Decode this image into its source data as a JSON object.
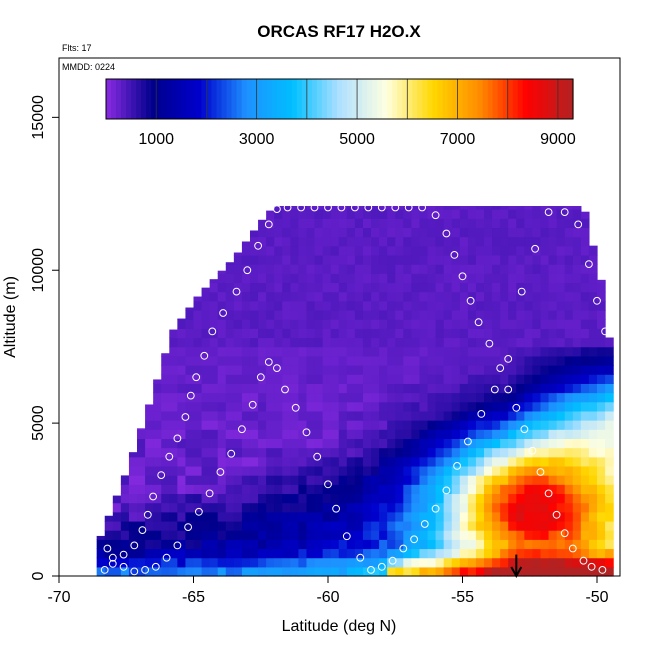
{
  "chart_data": {
    "type": "heatmap",
    "title": "ORCAS RF17 H2O.X",
    "flights_note": "Flts: 17",
    "date_note": "MMDD: 0224",
    "xlabel": "Latitude (deg N)",
    "ylabel": "Altitude (m)",
    "xlim": [
      -70,
      -49
    ],
    "ylim": [
      0,
      17000
    ],
    "x_ticks": [
      -70,
      -65,
      -60,
      -55,
      -50
    ],
    "x_tick_labels": [
      "-70",
      "-65",
      "-60",
      "-55",
      "-50"
    ],
    "y_ticks": [
      0,
      5000,
      10000,
      15000
    ],
    "y_tick_labels": [
      "0",
      "5000",
      "10000",
      "15000"
    ],
    "colorbar": {
      "range": [
        0,
        9300
      ],
      "ticks": [
        1000,
        3000,
        5000,
        7000,
        9000
      ],
      "tick_labels": [
        "1000",
        "3000",
        "5000",
        "7000",
        "9000"
      ],
      "colors": [
        "#8a2be2",
        "#00008b",
        "#0000cd",
        "#1e90ff",
        "#00bfff",
        "#b0e0ff",
        "#ffffe0",
        "#ffd700",
        "#ff8c00",
        "#ff0000",
        "#b22222"
      ]
    },
    "field": {
      "lat_min": -68.6,
      "lat_max": -49.6,
      "top_envelope": [
        [
          -68.5,
          1200
        ],
        [
          -67.5,
          3400
        ],
        [
          -66.5,
          6000
        ],
        [
          -65.8,
          8000
        ],
        [
          -64.8,
          9200
        ],
        [
          -63.5,
          10400
        ],
        [
          -62.5,
          11600
        ],
        [
          -62.0,
          12100
        ],
        [
          -56.0,
          12100
        ],
        [
          -50.5,
          12100
        ],
        [
          -49.8,
          9500
        ],
        [
          -49.6,
          7800
        ]
      ],
      "surface_hot_lat": -57.9,
      "hot_plume_core": [
        -52.5,
        2400
      ],
      "cold_upper_value": 250
    },
    "observations": {
      "ascent_west": [
        [
          -68.3,
          200
        ],
        [
          -68.0,
          400
        ],
        [
          -67.6,
          700
        ],
        [
          -67.2,
          1000
        ],
        [
          -66.9,
          1500
        ],
        [
          -66.7,
          2000
        ],
        [
          -66.5,
          2600
        ],
        [
          -66.2,
          3300
        ],
        [
          -65.9,
          3900
        ],
        [
          -65.6,
          4500
        ],
        [
          -65.3,
          5200
        ],
        [
          -65.1,
          5900
        ],
        [
          -64.9,
          6500
        ],
        [
          -64.6,
          7200
        ],
        [
          -64.3,
          8000
        ],
        [
          -63.9,
          8600
        ],
        [
          -63.4,
          9300
        ],
        [
          -63.0,
          10000
        ],
        [
          -62.6,
          10800
        ],
        [
          -62.2,
          11500
        ],
        [
          -61.9,
          12000
        ]
      ],
      "level_top": [
        [
          -61.5,
          12050
        ],
        [
          -61.0,
          12050
        ],
        [
          -60.5,
          12050
        ],
        [
          -60.0,
          12050
        ],
        [
          -59.5,
          12050
        ],
        [
          -59.0,
          12050
        ],
        [
          -58.5,
          12050
        ],
        [
          -58.0,
          12050
        ],
        [
          -57.5,
          12050
        ],
        [
          -57.0,
          12050
        ],
        [
          -56.5,
          12050
        ]
      ],
      "descent_east": [
        [
          -56.0,
          11800
        ],
        [
          -55.6,
          11200
        ],
        [
          -55.3,
          10500
        ],
        [
          -55.0,
          9800
        ],
        [
          -54.7,
          9000
        ],
        [
          -54.4,
          8300
        ],
        [
          -54.0,
          7600
        ],
        [
          -53.6,
          6800
        ],
        [
          -53.3,
          6100
        ],
        [
          -53.0,
          5500
        ],
        [
          -52.7,
          4800
        ],
        [
          -52.4,
          4100
        ],
        [
          -52.1,
          3400
        ],
        [
          -51.8,
          2700
        ],
        [
          -51.5,
          2000
        ],
        [
          -51.2,
          1400
        ],
        [
          -50.9,
          900
        ],
        [
          -50.5,
          500
        ],
        [
          -50.2,
          300
        ],
        [
          -49.8,
          200
        ]
      ],
      "return_track": [
        [
          -49.7,
          8000
        ],
        [
          -50.0,
          9000
        ],
        [
          -50.3,
          10200
        ],
        [
          -50.7,
          11500
        ],
        [
          -51.2,
          11900
        ],
        [
          -51.8,
          11900
        ],
        [
          -52.3,
          10700
        ],
        [
          -52.8,
          9300
        ],
        [
          -53.3,
          7100
        ],
        [
          -53.8,
          6100
        ],
        [
          -54.3,
          5300
        ],
        [
          -54.8,
          4400
        ],
        [
          -55.2,
          3600
        ],
        [
          -55.6,
          2800
        ],
        [
          -56.0,
          2200
        ],
        [
          -56.4,
          1700
        ],
        [
          -56.8,
          1200
        ],
        [
          -57.2,
          900
        ],
        [
          -57.6,
          500
        ],
        [
          -58.0,
          300
        ],
        [
          -58.4,
          200
        ],
        [
          -58.8,
          600
        ],
        [
          -59.3,
          1300
        ],
        [
          -59.7,
          2200
        ],
        [
          -60.0,
          3000
        ],
        [
          -60.4,
          3900
        ],
        [
          -60.8,
          4700
        ],
        [
          -61.2,
          5500
        ],
        [
          -61.6,
          6100
        ],
        [
          -61.9,
          6800
        ],
        [
          -62.2,
          7000
        ],
        [
          -62.5,
          6500
        ],
        [
          -62.8,
          5600
        ],
        [
          -63.2,
          4800
        ],
        [
          -63.6,
          4000
        ],
        [
          -64.0,
          3400
        ],
        [
          -64.4,
          2700
        ],
        [
          -64.8,
          2100
        ],
        [
          -65.2,
          1600
        ],
        [
          -65.6,
          1000
        ],
        [
          -66.0,
          600
        ],
        [
          -66.4,
          300
        ],
        [
          -66.8,
          200
        ],
        [
          -67.2,
          150
        ],
        [
          -67.6,
          300
        ],
        [
          -68.0,
          600
        ],
        [
          -68.2,
          900
        ]
      ]
    },
    "arrow_marker": {
      "lat": -53.0,
      "from_altitude": 700,
      "to_altitude": 0
    }
  }
}
